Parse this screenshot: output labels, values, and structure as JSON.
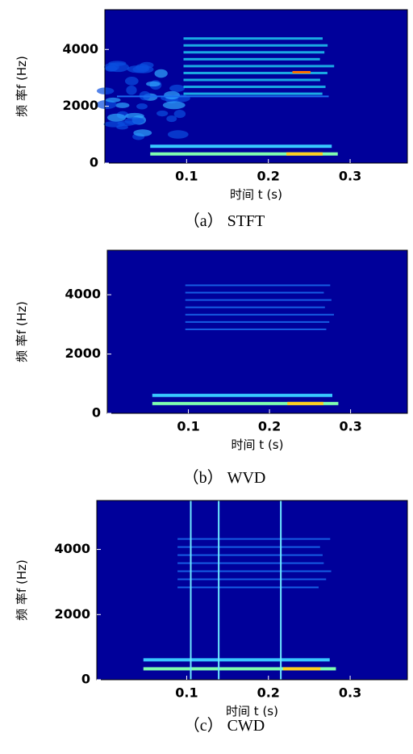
{
  "chart_data": [
    {
      "type": "heatmap",
      "caption": "（a） STFT",
      "xlabel": "时间 t (s)",
      "ylabel": "频 率f (Hz)",
      "xlim": [
        0,
        0.37
      ],
      "xticks": [
        0.1,
        0.2,
        0.3
      ],
      "ylim": [
        0,
        5400
      ],
      "yticks": [
        0,
        2000,
        4000
      ]
    },
    {
      "type": "heatmap",
      "caption": "（b） WVD",
      "xlabel": "时间 t (s)",
      "ylabel": "频 率f (Hz)",
      "xlim": [
        0,
        0.37
      ],
      "xticks": [
        0.1,
        0.2,
        0.3
      ],
      "ylim": [
        0,
        5500
      ],
      "yticks": [
        0,
        2000,
        4000
      ]
    },
    {
      "type": "heatmap",
      "caption": "（c） CWD",
      "xlabel": "时间 t (s)",
      "ylabel": "频 率f (Hz)",
      "xlim": [
        -0.01,
        0.37
      ],
      "xticks": [
        0.1,
        0.2,
        0.3
      ],
      "ylim": [
        0,
        5500
      ],
      "yticks": [
        0,
        2000,
        4000
      ]
    }
  ]
}
